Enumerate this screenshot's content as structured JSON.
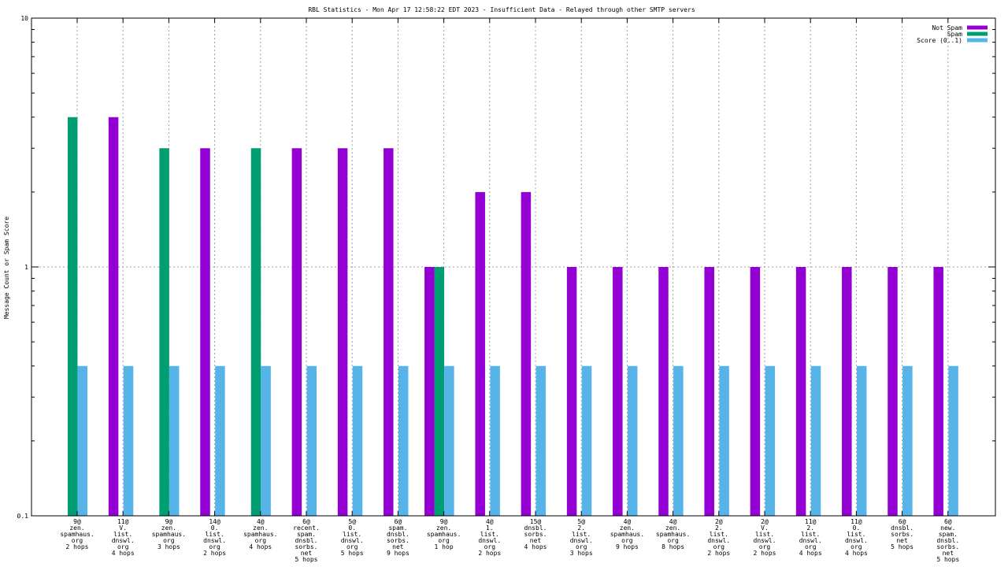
{
  "chart_data": {
    "type": "bar",
    "title": "RBL Statistics - Mon Apr 17 12:58:22 EDT 2023 - Insufficient Data - Relayed through other SMTP servers",
    "xlabel": "",
    "ylabel": "Message Count or Spam Score",
    "yscale": "log",
    "ylim": [
      0.1,
      10
    ],
    "yticks": [
      "0.1",
      "1",
      "10"
    ],
    "grid": true,
    "legend_position": "top-right",
    "colors": {
      "not_spam": "#9400d3",
      "spam": "#009e73",
      "score": "#56b4e9",
      "grid": "#a0a0a0"
    },
    "categories": [
      "9@ zen. spamhaus. org 2 hops",
      "11@ V. list. dnswl. org 4 hops",
      "9@ zen. spamhaus. org 3 hops",
      "14@ 0. list. dnswl. org 2 hops",
      "4@ zen. spamhaus. org 4 hops",
      "6@ recent. spam. dnsbl. sorbs. net 5 hops",
      "5@ 0. list. dnswl. org 5 hops",
      "6@ spam. dnsbl. sorbs. net 9 hops",
      "9@ zen. spamhaus. org 1 hop",
      "4@ 1. list. dnswl. org 2 hops",
      "15@ dnsbl. sorbs. net 4 hops",
      "5@ 2. list. dnswl. org 3 hops",
      "4@ zen. spamhaus. org 9 hops",
      "4@ zen. spamhaus. org 8 hops",
      "2@ 2. list. dnswl. org 2 hops",
      "2@ V. list. dnswl. org 2 hops",
      "11@ 2. list. dnswl. org 4 hops",
      "11@ 0. list. dnswl. org 4 hops",
      "6@ dnsbl. sorbs. net 5 hops",
      "6@ new. spam. dnsbl. sorbs. net 5 hops"
    ],
    "category_lines": [
      [
        "9@",
        "zen.",
        "spamhaus.",
        "org",
        "2 hops"
      ],
      [
        "11@",
        "V.",
        "list.",
        "dnswl.",
        "org",
        "4 hops"
      ],
      [
        "9@",
        "zen.",
        "spamhaus.",
        "org",
        "3 hops"
      ],
      [
        "14@",
        "0.",
        "list.",
        "dnswl.",
        "org",
        "2 hops"
      ],
      [
        "4@",
        "zen.",
        "spamhaus.",
        "org",
        "4 hops"
      ],
      [
        "6@",
        "recent.",
        "spam.",
        "dnsbl.",
        "sorbs.",
        "net",
        "5 hops"
      ],
      [
        "5@",
        "0.",
        "list.",
        "dnswl.",
        "org",
        "5 hops"
      ],
      [
        "6@",
        "spam.",
        "dnsbl.",
        "sorbs.",
        "net",
        "9 hops"
      ],
      [
        "9@",
        "zen.",
        "spamhaus.",
        "org",
        "1 hop"
      ],
      [
        "4@",
        "1.",
        "list.",
        "dnswl.",
        "org",
        "2 hops"
      ],
      [
        "15@",
        "dnsbl.",
        "sorbs.",
        "net",
        "4 hops"
      ],
      [
        "5@",
        "2.",
        "list.",
        "dnswl.",
        "org",
        "3 hops"
      ],
      [
        "4@",
        "zen.",
        "spamhaus.",
        "org",
        "9 hops"
      ],
      [
        "4@",
        "zen.",
        "spamhaus.",
        "org",
        "8 hops"
      ],
      [
        "2@",
        "2.",
        "list.",
        "dnswl.",
        "org",
        "2 hops"
      ],
      [
        "2@",
        "V.",
        "list.",
        "dnswl.",
        "org",
        "2 hops"
      ],
      [
        "11@",
        "2.",
        "list.",
        "dnswl.",
        "org",
        "4 hops"
      ],
      [
        "11@",
        "0.",
        "list.",
        "dnswl.",
        "org",
        "4 hops"
      ],
      [
        "6@",
        "dnsbl.",
        "sorbs.",
        "net",
        "5 hops"
      ],
      [
        "6@",
        "new.",
        "spam.",
        "dnsbl.",
        "sorbs.",
        "net",
        "5 hops"
      ]
    ],
    "series": [
      {
        "name": "Not Spam",
        "key": "not_spam",
        "values": [
          0,
          4,
          0,
          3,
          0,
          3,
          3,
          3,
          1,
          2,
          2,
          1,
          1,
          1,
          1,
          1,
          1,
          1,
          1,
          1
        ]
      },
      {
        "name": "Spam",
        "key": "spam",
        "values": [
          4,
          0,
          3,
          0,
          3,
          0,
          0,
          0,
          1,
          0,
          0,
          0,
          0,
          0,
          0,
          0,
          0,
          0,
          0,
          0
        ]
      },
      {
        "name": "Score (0..1)",
        "key": "score",
        "values": [
          0.4,
          0.4,
          0.4,
          0.4,
          0.4,
          0.4,
          0.4,
          0.4,
          0.4,
          0.4,
          0.4,
          0.4,
          0.4,
          0.4,
          0.4,
          0.4,
          0.4,
          0.4,
          0.4,
          0.4
        ]
      }
    ]
  }
}
